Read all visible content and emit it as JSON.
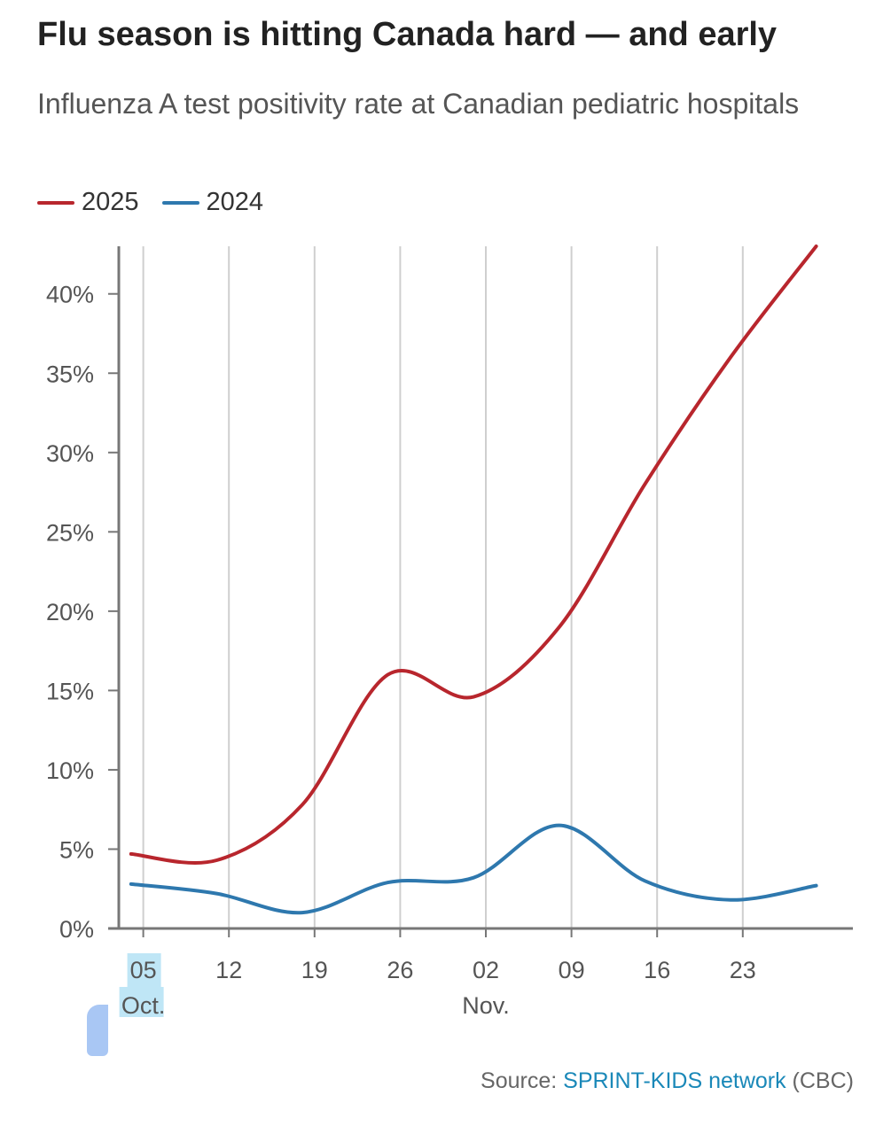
{
  "title": "Flu season is hitting Canada hard — and early",
  "subtitle": "Influenza A test positivity rate at Canadian pediatric hospitals",
  "legend": [
    {
      "label": "2025",
      "color": "#b8262d"
    },
    {
      "label": "2024",
      "color": "#2e78ae"
    }
  ],
  "source": {
    "prefix": "Source: ",
    "link": "SPRINT-KIDS network",
    "suffix": " (CBC)"
  },
  "chart_data": {
    "type": "line",
    "title": "Flu season is hitting Canada hard — and early",
    "subtitle": "Influenza A test positivity rate at Canadian pediatric hospitals",
    "xlabel": "",
    "ylabel": "",
    "ylim": [
      0,
      43
    ],
    "yticks": [
      0,
      5,
      10,
      15,
      20,
      25,
      30,
      35,
      40
    ],
    "ytick_labels": [
      "0%",
      "5%",
      "10%",
      "15%",
      "20%",
      "25%",
      "30%",
      "35%",
      "40%"
    ],
    "xtick_labels": [
      "05",
      "12",
      "19",
      "26",
      "02",
      "09",
      "16",
      "23"
    ],
    "month_labels": [
      {
        "label": "Oct.",
        "at_tick": 0
      },
      {
        "label": "Nov.",
        "at_tick": 4
      }
    ],
    "x_range_days": [
      -2,
      58
    ],
    "legend_position": "top-left",
    "grid": "vertical",
    "series": [
      {
        "name": "2025",
        "color": "#b8262d",
        "x": [
          -1,
          6,
          13,
          20,
          27,
          34,
          41,
          48,
          55
        ],
        "values": [
          4.7,
          4.3,
          7.8,
          16.0,
          14.6,
          19.0,
          28.0,
          36.0,
          43.0
        ]
      },
      {
        "name": "2024",
        "color": "#2e78ae",
        "x": [
          -1,
          6,
          13,
          20,
          27,
          34,
          41,
          48,
          55
        ],
        "values": [
          2.8,
          2.2,
          1.0,
          2.9,
          3.2,
          6.5,
          3.0,
          1.8,
          2.7
        ]
      }
    ]
  }
}
